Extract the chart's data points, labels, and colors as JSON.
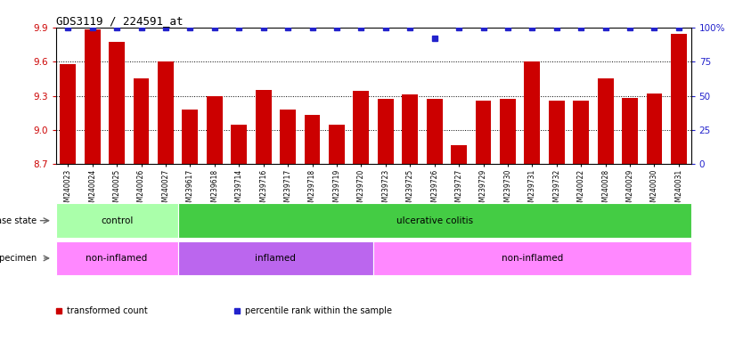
{
  "title": "GDS3119 / 224591_at",
  "samples": [
    "GSM240023",
    "GSM240024",
    "GSM240025",
    "GSM240026",
    "GSM240027",
    "GSM239617",
    "GSM239618",
    "GSM239714",
    "GSM239716",
    "GSM239717",
    "GSM239718",
    "GSM239719",
    "GSM239720",
    "GSM239723",
    "GSM239725",
    "GSM239726",
    "GSM239727",
    "GSM239729",
    "GSM239730",
    "GSM239731",
    "GSM239732",
    "GSM240022",
    "GSM240028",
    "GSM240029",
    "GSM240030",
    "GSM240031"
  ],
  "bar_values": [
    9.58,
    9.88,
    9.77,
    9.45,
    9.6,
    9.18,
    9.3,
    9.05,
    9.35,
    9.18,
    9.13,
    9.05,
    9.34,
    9.27,
    9.31,
    9.27,
    8.87,
    9.26,
    9.27,
    9.6,
    9.26,
    9.26,
    9.45,
    9.28,
    9.32,
    9.84
  ],
  "percentile_values": [
    100,
    100,
    100,
    100,
    100,
    100,
    100,
    100,
    100,
    100,
    100,
    100,
    100,
    100,
    100,
    92,
    100,
    100,
    100,
    100,
    100,
    100,
    100,
    100,
    100,
    100
  ],
  "ymin": 8.7,
  "ymax": 9.9,
  "yticks": [
    8.7,
    9.0,
    9.3,
    9.6,
    9.9
  ],
  "right_yticks": [
    0,
    25,
    50,
    75,
    100
  ],
  "bar_color": "#CC0000",
  "dot_color": "#2222CC",
  "bg_color": "#FFFFFF",
  "disease_state_groups": [
    {
      "label": "control",
      "start": 0,
      "end": 5,
      "color": "#AAFFAA"
    },
    {
      "label": "ulcerative colitis",
      "start": 5,
      "end": 26,
      "color": "#44CC44"
    }
  ],
  "specimen_groups": [
    {
      "label": "non-inflamed",
      "start": 0,
      "end": 5,
      "color": "#FF88FF"
    },
    {
      "label": "inflamed",
      "start": 5,
      "end": 13,
      "color": "#BB66EE"
    },
    {
      "label": "non-inflamed",
      "start": 13,
      "end": 26,
      "color": "#FF88FF"
    }
  ],
  "legend_items": [
    {
      "label": "transformed count",
      "color": "#CC0000"
    },
    {
      "label": "percentile rank within the sample",
      "color": "#2222CC"
    }
  ]
}
